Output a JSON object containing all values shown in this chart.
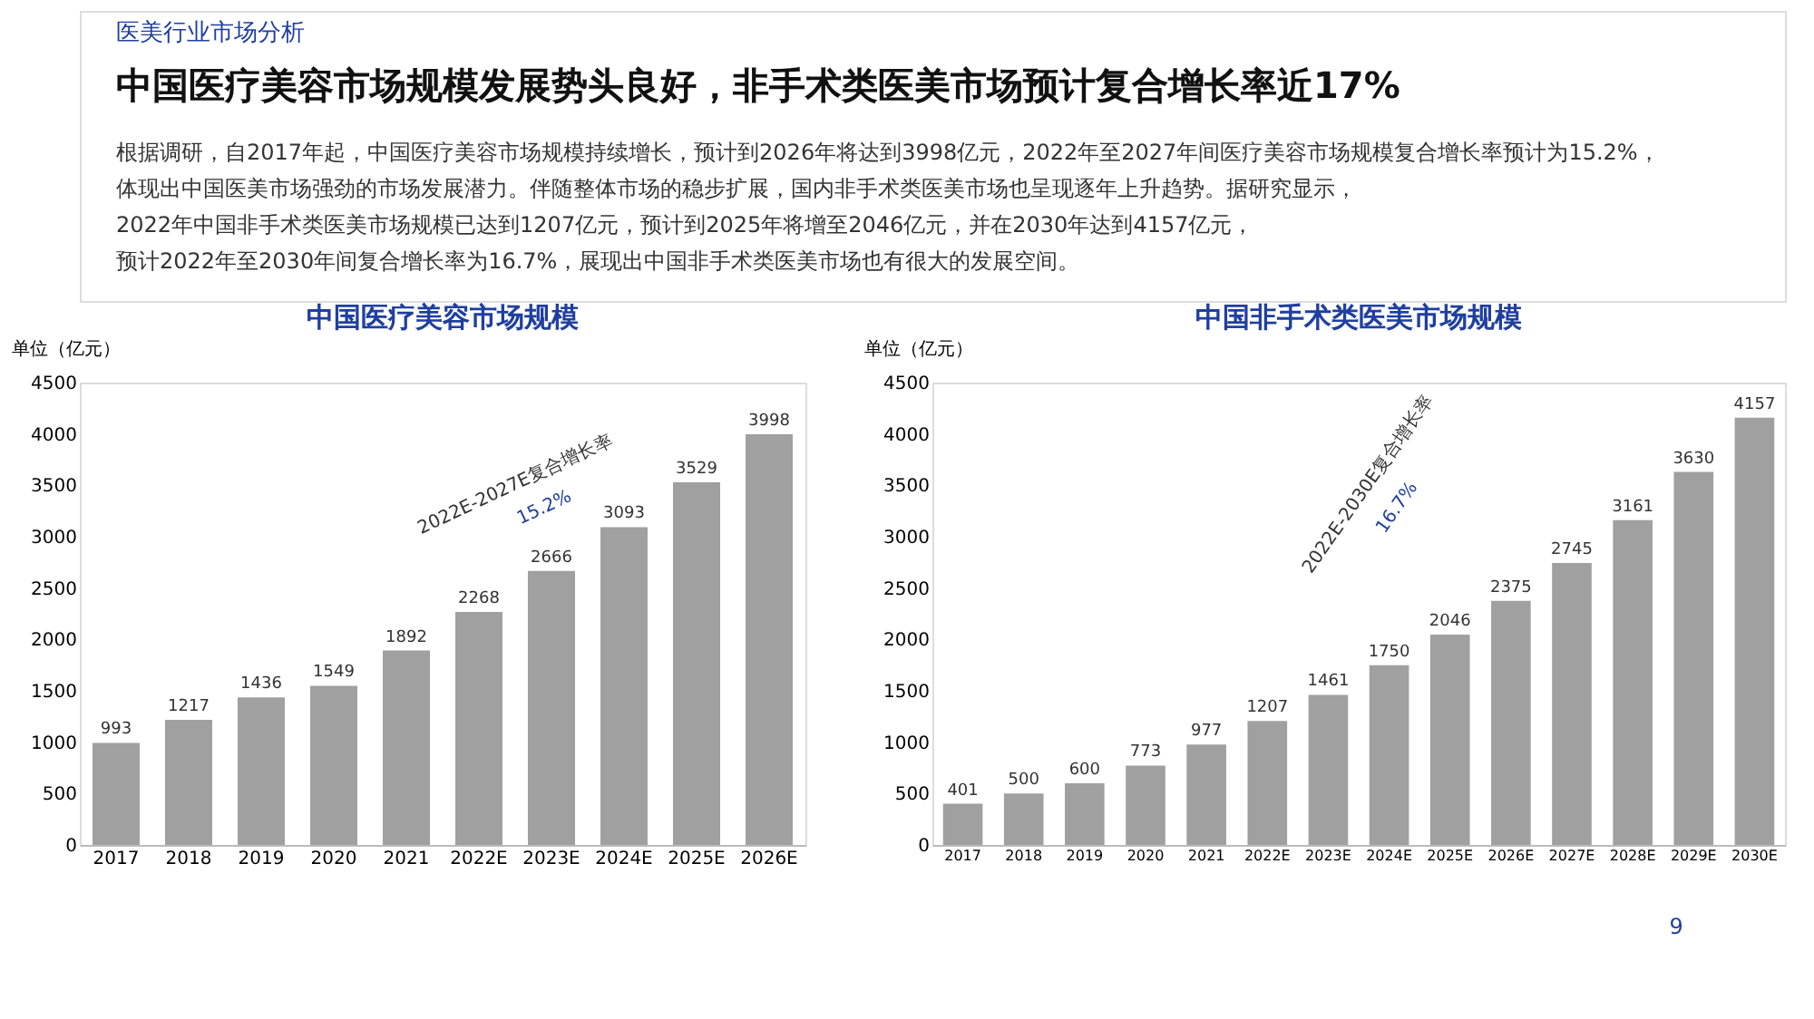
{
  "chart_data": [
    {
      "type": "bar",
      "title": "中国医疗美容市场规模",
      "ylabel": "单位（亿元）",
      "categories": [
        "2017",
        "2018",
        "2019",
        "2020",
        "2021",
        "2022E",
        "2023E",
        "2024E",
        "2025E",
        "2026E"
      ],
      "values": [
        993,
        1217,
        1436,
        1549,
        1892,
        2268,
        2666,
        3093,
        3529,
        3998
      ],
      "color": "#a0a0a0",
      "ylim": [
        0,
        4500
      ],
      "yticks": [
        0,
        500,
        1000,
        1500,
        2000,
        2500,
        3000,
        3500,
        4000,
        4500
      ],
      "grid": false,
      "data_labels": true,
      "annotations": [
        "医美行业市场分析",
        "中国医疗美容市场规模发展势头良好，非手术类医美市场预计复合增长率近17%",
        "根据调研，自2017年起，中国医疗美容市场规模持续增长，预计到2026年将达到3998亿元，2022年至2027年间医疗美容市场规模复合增长率预计为15.2%，",
        "体现出中国医美市场强劲的市场发展潜力。伴随整体市场的稳步扩展，国内非手术类医美市场也呈现逐年上升趋势。据研究显示，",
        "2022年中国非手术类医美市场规模已达到1207亿元，预计到2025年将增至2046亿元，并在2030年达到4157亿元，",
        "预计2022年至2030年间复合增长率为16.7%，展现出中国非手术类医美市场也有很大的发展空间。",
        "2022E-2027E复合增长率",
        "15.2%"
      ]
    },
    {
      "type": "bar",
      "title": "中国非手术类医美市场规模",
      "ylabel": "单位（亿元）",
      "categories": [
        "2017",
        "2018",
        "2019",
        "2020",
        "2021",
        "2022E",
        "2023E",
        "2024E",
        "2025E",
        "2026E",
        "2027E",
        "2028E",
        "2029E",
        "2030E"
      ],
      "values": [
        401,
        500,
        600,
        773,
        977,
        1207,
        1461,
        1750,
        2046,
        2375,
        2745,
        3161,
        3630,
        4157
      ],
      "color": "#a0a0a0",
      "ylim": [
        0,
        4500
      ],
      "yticks": [
        0,
        500,
        1000,
        1500,
        2000,
        2500,
        3000,
        3500,
        4000,
        4500
      ],
      "grid": false,
      "data_labels": true,
      "annotations": [
        "2022E-2030E复合增长率",
        "16.7%",
        "9"
      ]
    }
  ]
}
